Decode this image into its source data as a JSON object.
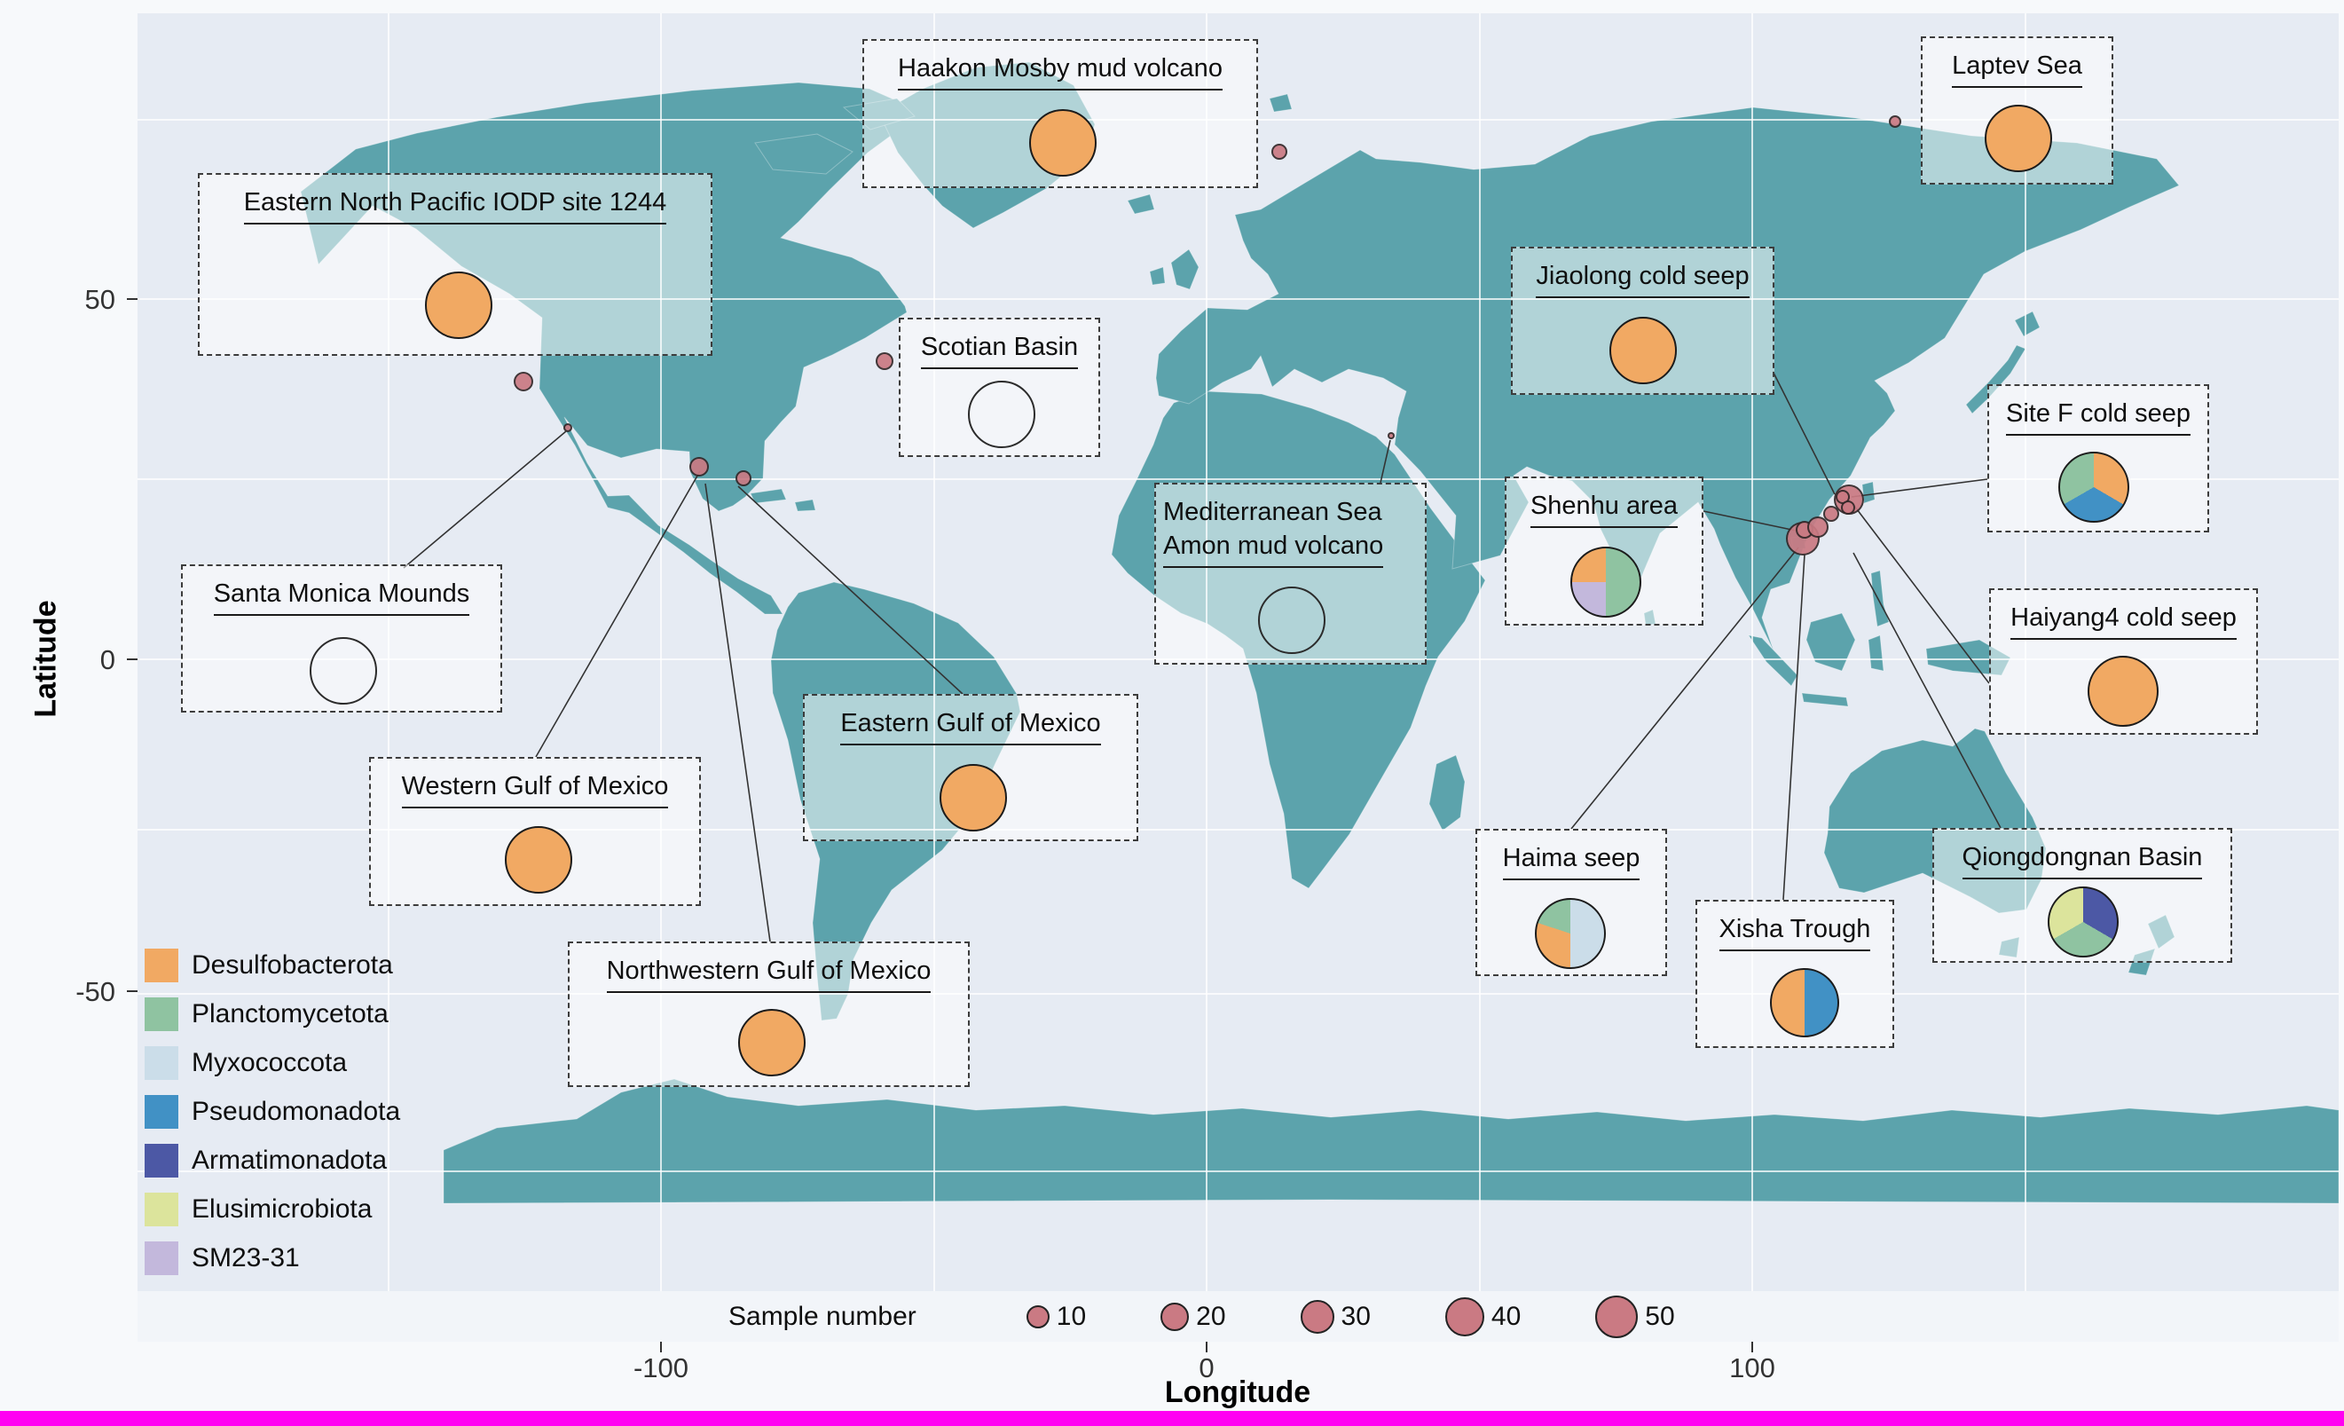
{
  "chart_data": {
    "type": "map",
    "projection": "equirectangular",
    "title": "",
    "axes": {
      "x": {
        "label": "Longitude",
        "ticks": [
          "-100",
          "0",
          "100"
        ]
      },
      "y": {
        "label": "Latitude",
        "ticks": [
          "50",
          "0",
          "-50"
        ]
      }
    },
    "grid": {
      "lon_step_deg": 50,
      "lat_step_deg": 25,
      "grid_on": true
    },
    "taxa_legend": [
      {
        "taxon": "Desulfobacterota",
        "color": "#F1A963"
      },
      {
        "taxon": "Planctomycetota",
        "color": "#8FC3A1"
      },
      {
        "taxon": "Myxococcota",
        "color": "#CBDDE9"
      },
      {
        "taxon": "Pseudomonadota",
        "color": "#4191C5"
      },
      {
        "taxon": "Armatimonadota",
        "color": "#4C58A5"
      },
      {
        "taxon": "Elusimicrobiota",
        "color": "#DCE49C"
      },
      {
        "taxon": "SM23-31",
        "color": "#C3B8DC"
      }
    ],
    "size_legend": {
      "title": "Sample number",
      "values": [
        "10",
        "20",
        "30",
        "40",
        "50"
      ]
    },
    "colors": {
      "land": "#5CA3AC",
      "ocean": "#E6EBF3",
      "sample_dot": "#CA7A83",
      "bottom_bar": "#FF00F2"
    },
    "sites": [
      {
        "line1": "Eastern North Pacific IODP site 1244",
        "pie": [
          {
            "taxon": "Desulfobacterota",
            "pct": 100
          }
        ]
      },
      {
        "line1": "Haakon Mosby mud volcano",
        "pie": [
          {
            "taxon": "Desulfobacterota",
            "pct": 100
          }
        ]
      },
      {
        "line1": "Laptev Sea",
        "pie": [
          {
            "taxon": "Desulfobacterota",
            "pct": 100
          }
        ]
      },
      {
        "line1": "Scotian Basin",
        "pie": []
      },
      {
        "line1": "Santa Monica Mounds",
        "pie": []
      },
      {
        "line1": "Western Gulf of Mexico",
        "pie": [
          {
            "taxon": "Desulfobacterota",
            "pct": 100
          }
        ]
      },
      {
        "line1": "Eastern Gulf of Mexico",
        "pie": [
          {
            "taxon": "Desulfobacterota",
            "pct": 100
          }
        ]
      },
      {
        "line1": "Northwestern Gulf of Mexico",
        "pie": [
          {
            "taxon": "Desulfobacterota",
            "pct": 100
          }
        ]
      },
      {
        "line1": "Mediterranean Sea",
        "line2": "Amon mud volcano",
        "pie": []
      },
      {
        "line1": "Jiaolong cold seep",
        "pie": [
          {
            "taxon": "Desulfobacterota",
            "pct": 100
          }
        ]
      },
      {
        "line1": "Shenhu area",
        "pie": [
          {
            "taxon": "Planctomycetota",
            "pct": 50
          },
          {
            "taxon": "SM23-31",
            "pct": 25
          },
          {
            "taxon": "Desulfobacterota",
            "pct": 25
          }
        ]
      },
      {
        "line1": "Site F cold seep",
        "pie": [
          {
            "taxon": "Desulfobacterota",
            "pct": 33.4
          },
          {
            "taxon": "Pseudomonadota",
            "pct": 33.3
          },
          {
            "taxon": "Planctomycetota",
            "pct": 33.3
          }
        ]
      },
      {
        "line1": "Haiyang4 cold seep",
        "pie": [
          {
            "taxon": "Desulfobacterota",
            "pct": 100
          }
        ]
      },
      {
        "line1": "Haima seep",
        "pie": [
          {
            "taxon": "Myxococcota",
            "pct": 50
          },
          {
            "taxon": "Desulfobacterota",
            "pct": 30
          },
          {
            "taxon": "Planctomycetota",
            "pct": 20
          }
        ]
      },
      {
        "line1": "Xisha Trough",
        "pie": [
          {
            "taxon": "Pseudomonadota",
            "pct": 50
          },
          {
            "taxon": "Desulfobacterota",
            "pct": 50
          }
        ]
      },
      {
        "line1": "Qiongdongnan Basin",
        "pie": [
          {
            "taxon": "Armatimonadota",
            "pct": 33.4
          },
          {
            "taxon": "Planctomycetota",
            "pct": 33.3
          },
          {
            "taxon": "Elusimicrobiota",
            "pct": 33.3
          }
        ]
      }
    ],
    "sample_points": [
      {
        "lon": -125.2,
        "lat": 38.6,
        "r": 11
      },
      {
        "lon": -117.1,
        "lat": 32.1,
        "r": 5
      },
      {
        "lon": -93.0,
        "lat": 26.7,
        "r": 11
      },
      {
        "lon": -84.9,
        "lat": 25.1,
        "r": 9
      },
      {
        "lon": -59.0,
        "lat": 41.4,
        "r": 10
      },
      {
        "lon": 13.3,
        "lat": 70.5,
        "r": 9
      },
      {
        "lon": 126.2,
        "lat": 74.6,
        "r": 7
      },
      {
        "lon": 33.8,
        "lat": 31.0,
        "r": 4
      },
      {
        "lon": 109.3,
        "lat": 16.7,
        "r": 19
      },
      {
        "lon": 109.6,
        "lat": 18.0,
        "r": 10
      },
      {
        "lon": 112.0,
        "lat": 18.4,
        "r": 12
      },
      {
        "lon": 114.5,
        "lat": 20.2,
        "r": 9
      },
      {
        "lon": 117.7,
        "lat": 22.2,
        "r": 17
      },
      {
        "lon": 116.6,
        "lat": 22.5,
        "r": 8
      },
      {
        "lon": 117.6,
        "lat": 21.1,
        "r": 8
      }
    ]
  }
}
